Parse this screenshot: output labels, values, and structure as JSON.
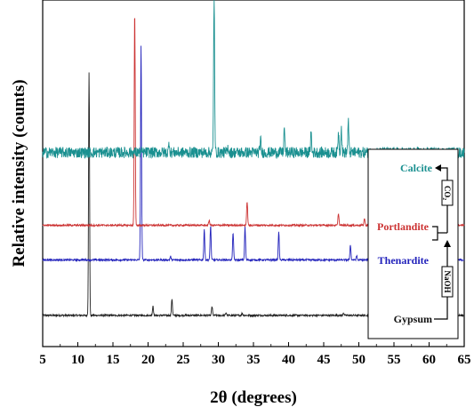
{
  "chart_data": {
    "type": "line",
    "xlabel": "2θ (degrees)",
    "ylabel": "Relative intensity (counts)",
    "xlim": [
      5,
      65
    ],
    "xticks": [
      5,
      10,
      15,
      20,
      25,
      30,
      35,
      40,
      45,
      50,
      55,
      60,
      65
    ],
    "ylim": [
      0,
      100
    ],
    "grid": false,
    "series": [
      {
        "name": "Gypsum",
        "color": "#222222",
        "baseline": 9,
        "noise": 0.25,
        "peaks": [
          [
            11.6,
            70
          ],
          [
            20.7,
            2.8
          ],
          [
            23.4,
            4.8
          ],
          [
            29.1,
            2.6
          ],
          [
            31.1,
            0.8
          ],
          [
            33.4,
            0.6
          ],
          [
            47.8,
            0.8
          ]
        ]
      },
      {
        "name": "Thenardite",
        "color": "#2222bb",
        "baseline": 25,
        "noise": 0.25,
        "peaks": [
          [
            19.0,
            62
          ],
          [
            23.2,
            1.0
          ],
          [
            28.0,
            9.0
          ],
          [
            28.9,
            10.0
          ],
          [
            32.1,
            8.0
          ],
          [
            33.8,
            9.5
          ],
          [
            38.6,
            8.0
          ],
          [
            48.8,
            4.5
          ],
          [
            49.7,
            1.2
          ]
        ]
      },
      {
        "name": "Portlandite",
        "color": "#cc3333",
        "baseline": 35,
        "noise": 0.25,
        "peaks": [
          [
            18.1,
            62
          ],
          [
            28.7,
            1.5
          ],
          [
            34.1,
            7.0
          ],
          [
            47.1,
            3.5
          ],
          [
            50.8,
            2.0
          ],
          [
            54.3,
            1.0
          ]
        ]
      },
      {
        "name": "Calcite",
        "color": "#1a9090",
        "baseline": 56,
        "noise": 1.6,
        "peaks": [
          [
            23.0,
            3.0
          ],
          [
            29.4,
            45
          ],
          [
            31.4,
            1.5
          ],
          [
            36.0,
            4.0
          ],
          [
            39.4,
            7.0
          ],
          [
            43.2,
            6.0
          ],
          [
            47.1,
            6.0
          ],
          [
            47.5,
            7.5
          ],
          [
            48.5,
            9.0
          ]
        ]
      }
    ],
    "inset_legend": {
      "entries": [
        "Calcite",
        "Portlandite",
        "Thenardite",
        "Gypsum"
      ],
      "reagents": [
        "CO₂",
        "NaOH"
      ]
    }
  }
}
